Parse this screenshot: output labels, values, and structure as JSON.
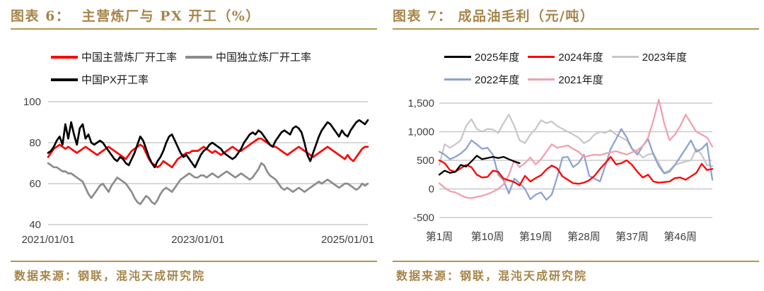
{
  "panels": [
    {
      "id": "figure-6",
      "title": "图表 6：  主营炼厂与 PX 开工（%）",
      "source": "数据来源：钢联，混沌天成研究院"
    },
    {
      "id": "figure-7",
      "title": "图表 7： 成品油毛利（元/吨）",
      "source": "数据来源：钢联，混沌天成研究院"
    }
  ],
  "theme": {
    "accent_gold_text": "#A6854A",
    "accent_gold_rule": "#B3954F",
    "axis_text": "#3F3F3F",
    "grid": "#C0C0C0",
    "background": "#FFFFFF"
  },
  "chart_data": [
    {
      "type": "line",
      "title": "主营炼厂与PX开工（%）",
      "x_tick_labels": [
        "2021/01/01",
        "2023/01/01",
        "2025/01/01"
      ],
      "x_tick_indices": [
        0,
        52,
        104
      ],
      "x_count": 112,
      "x_unit": "biweekly samples 2021-01 to 2025-04",
      "ylim": [
        40,
        100
      ],
      "yticks": [
        40,
        60,
        80,
        100
      ],
      "grid": true,
      "legend_position": "top",
      "draw_order": [
        0,
        1,
        2
      ],
      "series": [
        {
          "key": "china-main-refinery-run-rate",
          "name": "中国主营炼厂开工率",
          "color": "#FF0000",
          "values": [
            73,
            75,
            77,
            78,
            79,
            78,
            77,
            78,
            77,
            76,
            75,
            76,
            77,
            78,
            77,
            76,
            75,
            74,
            75,
            76,
            77,
            78,
            77,
            76,
            75,
            74,
            73,
            72,
            74,
            76,
            77,
            78,
            79,
            78,
            75,
            72,
            70,
            69,
            68,
            69,
            71,
            70,
            69,
            68,
            70,
            72,
            73,
            74,
            75,
            75,
            76,
            76,
            76,
            77,
            78,
            77,
            76,
            75,
            76,
            75,
            74,
            75,
            76,
            77,
            78,
            77,
            76,
            76,
            77,
            78,
            79,
            80,
            81,
            82,
            82,
            81,
            80,
            79,
            78,
            78,
            77,
            76,
            75,
            74,
            75,
            76,
            77,
            78,
            77,
            76,
            75,
            74,
            73,
            74,
            75,
            76,
            77,
            78,
            77,
            76,
            75,
            74,
            73,
            72,
            74,
            72,
            71,
            73,
            75,
            77,
            78,
            78
          ]
        },
        {
          "key": "china-independent-refinery-run-rate",
          "name": "中国独立炼厂开工率",
          "color": "#8C8C8C",
          "values": [
            70,
            69,
            68,
            68,
            67,
            66,
            66,
            65,
            65,
            64,
            63,
            62,
            61,
            58,
            55,
            53,
            55,
            57,
            59,
            60,
            58,
            56,
            59,
            61,
            63,
            62,
            61,
            60,
            58,
            56,
            53,
            51,
            50,
            52,
            54,
            53,
            51,
            50,
            52,
            55,
            57,
            58,
            57,
            56,
            58,
            60,
            62,
            63,
            64,
            65,
            64,
            63,
            63,
            64,
            64,
            63,
            64,
            65,
            64,
            63,
            64,
            65,
            66,
            65,
            64,
            63,
            64,
            65,
            64,
            63,
            62,
            63,
            65,
            67,
            70,
            69,
            66,
            64,
            63,
            62,
            60,
            58,
            57,
            58,
            57,
            56,
            57,
            58,
            57,
            56,
            57,
            58,
            59,
            60,
            61,
            60,
            61,
            62,
            61,
            60,
            59,
            58,
            59,
            60,
            60,
            59,
            58,
            57,
            58,
            60,
            59,
            60
          ]
        },
        {
          "key": "china-px-run-rate",
          "name": "中国PX开工率",
          "color": "#000000",
          "values": [
            75,
            76,
            78,
            81,
            83,
            79,
            89,
            82,
            90,
            84,
            79,
            87,
            89,
            82,
            84,
            80,
            79,
            80,
            81,
            80,
            78,
            76,
            74,
            72,
            71,
            73,
            72,
            70,
            69,
            72,
            75,
            79,
            83,
            81,
            77,
            73,
            70,
            68,
            71,
            73,
            76,
            80,
            83,
            84,
            81,
            78,
            75,
            73,
            74,
            72,
            70,
            68,
            71,
            74,
            76,
            77,
            79,
            80,
            79,
            78,
            77,
            75,
            74,
            73,
            72,
            73,
            75,
            77,
            80,
            82,
            84,
            85,
            84,
            86,
            85,
            83,
            81,
            79,
            78,
            81,
            83,
            85,
            86,
            85,
            84,
            87,
            88,
            87,
            85,
            80,
            74,
            71,
            75,
            79,
            83,
            86,
            88,
            90,
            89,
            87,
            85,
            83,
            86,
            84,
            83,
            86,
            88,
            90,
            91,
            90,
            89,
            91
          ]
        }
      ]
    },
    {
      "type": "line",
      "title": "成品油毛利（元/吨）",
      "x_tick_labels": [
        "第1周",
        "第10周",
        "第19周",
        "第28周",
        "第37周",
        "第46周"
      ],
      "x_tick_indices": [
        0,
        9,
        18,
        27,
        36,
        45
      ],
      "x_count": 52,
      "x_unit": "week of year",
      "ylim": [
        -500,
        1500
      ],
      "yticks": [
        -500,
        0,
        500,
        1000,
        1500
      ],
      "grid": true,
      "legend_position": "top",
      "draw_order": [
        2,
        3,
        4,
        1,
        0
      ],
      "series": [
        {
          "key": "year-2025",
          "name": "2025年度",
          "color": "#000000",
          "values": [
            250,
            320,
            280,
            300,
            420,
            390,
            480,
            580,
            520,
            540,
            560,
            540,
            560,
            520,
            480,
            450
          ]
        },
        {
          "key": "year-2024",
          "name": "2024年度",
          "color": "#FF0000",
          "values": [
            500,
            450,
            330,
            300,
            360,
            420,
            380,
            250,
            200,
            210,
            320,
            300,
            180,
            150,
            120,
            60,
            230,
            130,
            190,
            240,
            340,
            410,
            360,
            220,
            160,
            100,
            90,
            110,
            150,
            230,
            350,
            450,
            560,
            430,
            450,
            500,
            420,
            300,
            200,
            250,
            130,
            110,
            120,
            130,
            190,
            200,
            160,
            220,
            280,
            440,
            330,
            350
          ]
        },
        {
          "key": "year-2023",
          "name": "2023年度",
          "color": "#C8C8C8",
          "values": [
            420,
            780,
            720,
            780,
            850,
            1100,
            1220,
            1050,
            1000,
            1050,
            1040,
            980,
            1150,
            1300,
            1100,
            850,
            800,
            950,
            1050,
            1200,
            1150,
            1180,
            1100,
            1050,
            1000,
            950,
            900,
            800,
            850,
            950,
            1000,
            980,
            1030,
            950,
            900,
            850,
            700,
            650,
            550,
            600,
            620,
            450,
            280,
            330,
            420,
            450,
            480,
            500,
            700,
            600,
            420,
            400
          ]
        },
        {
          "key": "year-2022",
          "name": "2022年度",
          "color": "#8DA3CF",
          "values": [
            650,
            600,
            520,
            560,
            620,
            700,
            850,
            780,
            700,
            720,
            600,
            250,
            150,
            -80,
            180,
            100,
            0,
            -180,
            -100,
            -60,
            -190,
            -100,
            200,
            550,
            560,
            380,
            450,
            600,
            230,
            180,
            130,
            400,
            700,
            870,
            1050,
            900,
            700,
            600,
            750,
            870,
            600,
            400,
            270,
            300,
            420,
            560,
            700,
            850,
            650,
            700,
            800,
            160
          ]
        },
        {
          "key": "year-2021",
          "name": "2021年度",
          "color": "#F2A0AF",
          "values": [
            100,
            20,
            -40,
            -60,
            -110,
            -150,
            -160,
            -140,
            -120,
            -90,
            -50,
            0,
            80,
            250,
            500,
            380,
            450,
            550,
            430,
            520,
            650,
            780,
            720,
            740,
            760,
            700,
            650,
            560,
            580,
            600,
            590,
            620,
            640,
            660,
            630,
            600,
            640,
            680,
            750,
            900,
            1200,
            1560,
            1150,
            850,
            950,
            1100,
            1300,
            1150,
            1000,
            950,
            900,
            740
          ]
        }
      ]
    }
  ]
}
